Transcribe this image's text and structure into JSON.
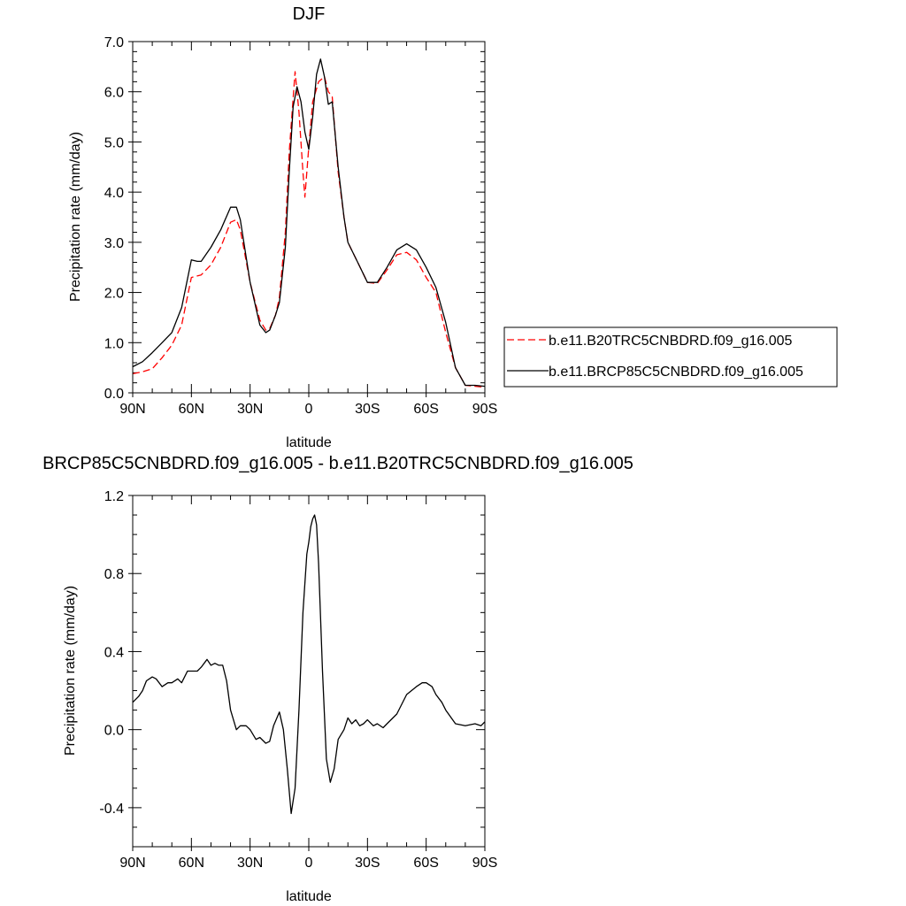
{
  "chart_data": [
    {
      "type": "line",
      "title": "DJF",
      "xlabel": "latitude",
      "ylabel": "Precipitation rate (mm/day)",
      "x_ticks": [
        {
          "value": 90,
          "label": "90N"
        },
        {
          "value": 60,
          "label": "60N"
        },
        {
          "value": 30,
          "label": "30N"
        },
        {
          "value": 0,
          "label": "0"
        },
        {
          "value": -30,
          "label": "30S"
        },
        {
          "value": -60,
          "label": "60S"
        },
        {
          "value": -90,
          "label": "90S"
        }
      ],
      "y_ticks": [
        {
          "value": 0,
          "label": "0.0"
        },
        {
          "value": 1,
          "label": "1.0"
        },
        {
          "value": 2,
          "label": "2.0"
        },
        {
          "value": 3,
          "label": "3.0"
        },
        {
          "value": 4,
          "label": "4.0"
        },
        {
          "value": 5,
          "label": "5.0"
        },
        {
          "value": 6,
          "label": "6.0"
        },
        {
          "value": 7,
          "label": "7.0"
        }
      ],
      "xlim": [
        90,
        -90
      ],
      "ylim": [
        0,
        7
      ],
      "legend_position": "right",
      "series": [
        {
          "name": "b.e11.B20TRC5CNBDRD.f09_g16.005",
          "color": "#ff0000",
          "dash": "dashed",
          "x": [
            90,
            85,
            80,
            75,
            70,
            65,
            60,
            55,
            50,
            45,
            40,
            37,
            35,
            30,
            25,
            22,
            20,
            17,
            15,
            12,
            10,
            7,
            5,
            3,
            2,
            0,
            -2,
            -5,
            -8,
            -10,
            -12,
            -15,
            -18,
            -20,
            -25,
            -30,
            -35,
            -40,
            -45,
            -50,
            -55,
            -60,
            -65,
            -70,
            -75,
            -80,
            -85,
            -88,
            -90
          ],
          "y": [
            0.38,
            0.42,
            0.48,
            0.7,
            0.95,
            1.35,
            2.3,
            2.35,
            2.55,
            2.9,
            3.4,
            3.45,
            3.25,
            2.2,
            1.45,
            1.25,
            1.28,
            1.55,
            1.9,
            3.2,
            4.8,
            6.4,
            5.6,
            4.4,
            3.9,
            4.9,
            5.8,
            6.2,
            6.3,
            6.0,
            5.9,
            4.4,
            3.5,
            3.0,
            2.6,
            2.2,
            2.18,
            2.45,
            2.75,
            2.8,
            2.65,
            2.3,
            2.0,
            1.2,
            0.5,
            0.15,
            0.13,
            0.12,
            0.12
          ]
        },
        {
          "name": "b.e11.BRCP85C5CNBDRD.f09_g16.005",
          "color": "#000000",
          "dash": "solid",
          "x": [
            90,
            85,
            80,
            75,
            70,
            65,
            60,
            57,
            55,
            50,
            45,
            40,
            37,
            35,
            30,
            25,
            22,
            20,
            17,
            15,
            12,
            10,
            8,
            6,
            4,
            2,
            0,
            -2,
            -4,
            -6,
            -8,
            -10,
            -12,
            -15,
            -18,
            -20,
            -25,
            -30,
            -35,
            -40,
            -45,
            -50,
            -55,
            -60,
            -65,
            -70,
            -75,
            -80,
            -85,
            -90
          ],
          "y": [
            0.52,
            0.62,
            0.8,
            1.0,
            1.2,
            1.7,
            2.65,
            2.62,
            2.62,
            2.9,
            3.25,
            3.7,
            3.7,
            3.45,
            2.2,
            1.35,
            1.2,
            1.25,
            1.55,
            1.8,
            2.9,
            4.4,
            5.7,
            6.1,
            5.8,
            5.2,
            4.85,
            5.5,
            6.35,
            6.65,
            6.3,
            5.75,
            5.8,
            4.5,
            3.5,
            3.0,
            2.6,
            2.2,
            2.2,
            2.5,
            2.85,
            2.97,
            2.85,
            2.5,
            2.1,
            1.4,
            0.5,
            0.15,
            0.15,
            0.13
          ]
        }
      ]
    },
    {
      "type": "line",
      "title": "BRCP85C5CNBDRD.f09_g16.005 - b.e11.B20TRC5CNBDRD.f09_g16.005",
      "xlabel": "latitude",
      "ylabel": "Precipitation rate (mm/day)",
      "x_ticks": [
        {
          "value": 90,
          "label": "90N"
        },
        {
          "value": 60,
          "label": "60N"
        },
        {
          "value": 30,
          "label": "30N"
        },
        {
          "value": 0,
          "label": "0"
        },
        {
          "value": -30,
          "label": "30S"
        },
        {
          "value": -60,
          "label": "60S"
        },
        {
          "value": -90,
          "label": "90S"
        }
      ],
      "y_ticks": [
        {
          "value": -0.4,
          "label": "-0.4"
        },
        {
          "value": 0,
          "label": "0.0"
        },
        {
          "value": 0.4,
          "label": "0.4"
        },
        {
          "value": 0.8,
          "label": "0.8"
        },
        {
          "value": 1.2,
          "label": "1.2"
        }
      ],
      "xlim": [
        90,
        -90
      ],
      "ylim": [
        -0.6,
        1.2
      ],
      "series": [
        {
          "color": "#000000",
          "dash": "solid",
          "x": [
            90,
            87,
            85,
            83,
            80,
            78,
            75,
            72,
            70,
            67,
            65,
            62,
            60,
            57,
            55,
            52,
            50,
            48,
            46,
            44,
            42,
            40,
            37,
            35,
            32,
            30,
            27,
            25,
            22,
            20,
            18,
            15,
            13,
            11,
            9,
            7,
            5,
            3,
            1,
            0,
            -1,
            -2,
            -3,
            -4,
            -5,
            -7,
            -9,
            -11,
            -13,
            -15,
            -18,
            -20,
            -22,
            -24,
            -26,
            -28,
            -30,
            -33,
            -35,
            -38,
            -40,
            -45,
            -50,
            -55,
            -58,
            -60,
            -63,
            -65,
            -68,
            -70,
            -75,
            -80,
            -85,
            -88,
            -90
          ],
          "y": [
            0.14,
            0.17,
            0.2,
            0.25,
            0.27,
            0.26,
            0.22,
            0.24,
            0.24,
            0.26,
            0.24,
            0.3,
            0.3,
            0.3,
            0.32,
            0.36,
            0.33,
            0.34,
            0.33,
            0.33,
            0.25,
            0.1,
            0.0,
            0.02,
            0.02,
            0.0,
            -0.05,
            -0.04,
            -0.07,
            -0.06,
            0.02,
            0.09,
            0.0,
            -0.2,
            -0.43,
            -0.3,
            0.1,
            0.6,
            0.9,
            0.96,
            1.04,
            1.08,
            1.1,
            1.05,
            0.85,
            0.3,
            -0.15,
            -0.27,
            -0.2,
            -0.05,
            0.0,
            0.06,
            0.03,
            0.05,
            0.02,
            0.03,
            0.05,
            0.02,
            0.03,
            0.01,
            0.03,
            0.08,
            0.18,
            0.22,
            0.24,
            0.24,
            0.22,
            0.18,
            0.14,
            0.1,
            0.03,
            0.02,
            0.03,
            0.02,
            0.04
          ]
        }
      ]
    }
  ]
}
